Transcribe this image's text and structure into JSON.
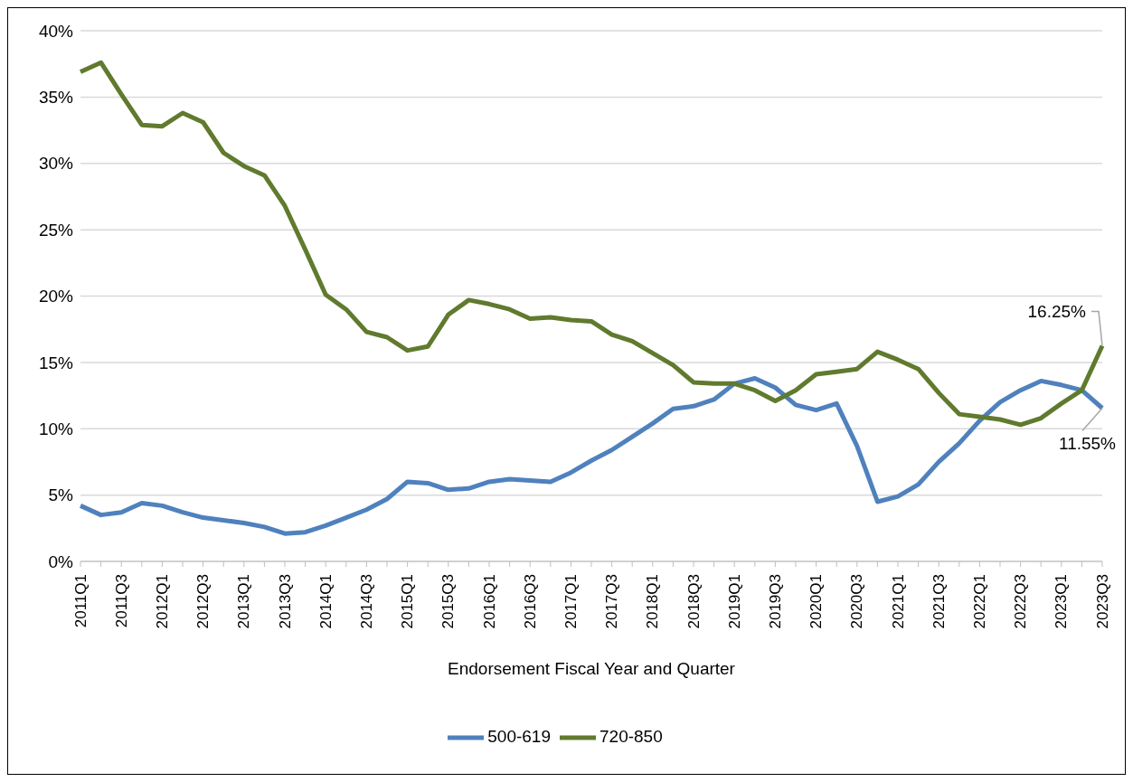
{
  "chart_data": {
    "type": "line",
    "xlabel": "Endorsement Fiscal Year and Quarter",
    "categories": [
      "2011Q1",
      null,
      "2011Q3",
      null,
      "2012Q1",
      null,
      "2012Q3",
      null,
      "2013Q1",
      null,
      "2013Q3",
      null,
      "2014Q1",
      null,
      "2014Q3",
      null,
      "2015Q1",
      null,
      "2015Q3",
      null,
      "2016Q1",
      null,
      "2016Q3",
      null,
      "2017Q1",
      null,
      "2017Q3",
      null,
      "2018Q1",
      null,
      "2018Q3",
      null,
      "2019Q1",
      null,
      "2019Q3",
      null,
      "2020Q1",
      null,
      "2020Q3",
      null,
      "2021Q1",
      null,
      "2021Q3",
      null,
      "2022Q1",
      null,
      "2022Q3",
      null,
      "2023Q1",
      null,
      "2023Q3"
    ],
    "series": [
      {
        "name": "500-619",
        "color": "#4f81bd",
        "values": [
          4.2,
          3.5,
          3.7,
          4.4,
          4.2,
          3.7,
          3.3,
          3.1,
          2.9,
          2.6,
          2.1,
          2.2,
          2.7,
          3.3,
          3.9,
          4.7,
          6.0,
          5.9,
          5.4,
          5.5,
          6.0,
          6.2,
          6.1,
          6.0,
          6.7,
          7.6,
          8.4,
          9.4,
          10.4,
          11.5,
          11.7,
          12.2,
          13.4,
          13.8,
          13.1,
          11.8,
          11.4,
          11.9,
          8.7,
          4.5,
          4.9,
          5.8,
          7.5,
          8.9,
          10.6,
          12.0,
          12.9,
          13.6,
          13.3,
          12.9,
          11.55
        ]
      },
      {
        "name": "720-850",
        "color": "#607a2e",
        "values": [
          36.9,
          37.6,
          35.2,
          32.9,
          32.8,
          33.8,
          33.1,
          30.8,
          29.8,
          29.1,
          26.8,
          23.5,
          20.1,
          19.0,
          17.3,
          16.9,
          15.9,
          16.2,
          18.6,
          19.7,
          19.4,
          19.0,
          18.3,
          18.4,
          18.2,
          18.1,
          17.1,
          16.6,
          15.7,
          14.8,
          13.5,
          13.4,
          13.4,
          12.9,
          12.1,
          12.9,
          14.1,
          14.3,
          14.5,
          15.8,
          15.2,
          14.5,
          12.7,
          11.1,
          10.9,
          10.7,
          10.3,
          10.8,
          11.9,
          12.9,
          16.25
        ]
      }
    ],
    "ylim": [
      0,
      40
    ],
    "yticks": [
      {
        "value": 0,
        "label": "0%"
      },
      {
        "value": 5,
        "label": "5%"
      },
      {
        "value": 10,
        "label": "10%"
      },
      {
        "value": 15,
        "label": "15%"
      },
      {
        "value": 20,
        "label": "20%"
      },
      {
        "value": 25,
        "label": "25%"
      },
      {
        "value": 30,
        "label": "30%"
      },
      {
        "value": 35,
        "label": "35%"
      },
      {
        "value": 40,
        "label": "40%"
      }
    ],
    "grid": "y",
    "legend": "bottom",
    "marker": "none",
    "line_style": "solid",
    "annotations": [
      {
        "text": "16.25%",
        "x": "2023Q3",
        "y": 16.25
      },
      {
        "text": "11.55%",
        "x": "2023Q3",
        "y": 11.55
      }
    ]
  }
}
